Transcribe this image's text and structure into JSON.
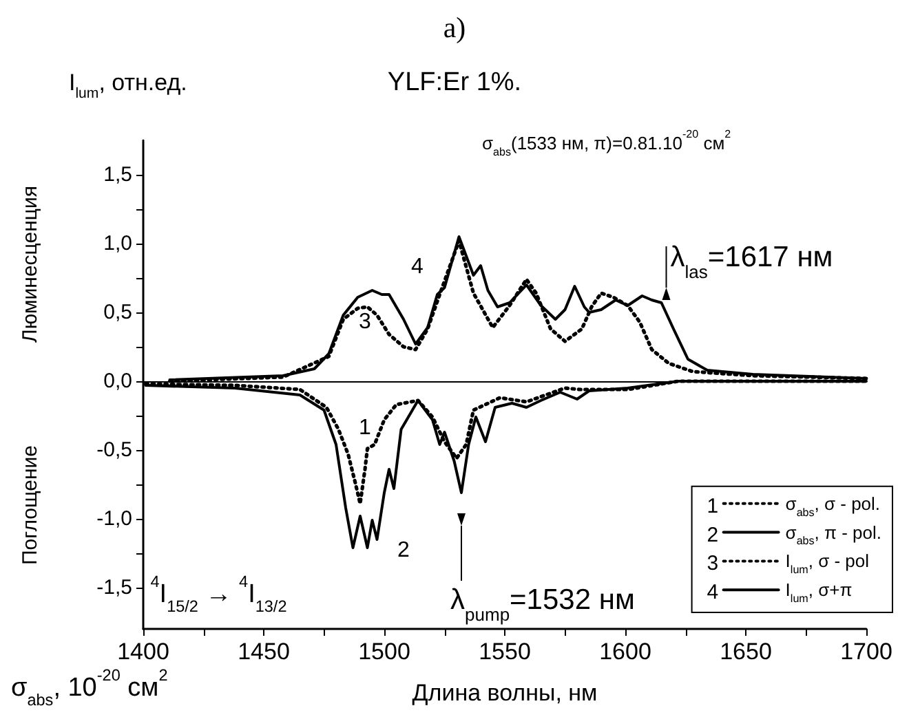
{
  "chart_data": {
    "type": "line",
    "title": "YLF:Er 1%.",
    "xlabel": "Длина волны, нм",
    "ylabel": "I$_{lum}$, отн.ед.",
    "xlim": [
      1400,
      1700
    ],
    "xticks": [
      1400,
      {
        "value": 1425,
        "label": null
      },
      1450,
      {
        "value": 1475,
        "label": null
      },
      1500,
      {
        "value": 1525,
        "label": null
      },
      1550,
      {
        "value": 1575,
        "label": null
      },
      1600,
      {
        "value": 1625,
        "label": null
      },
      1650,
      {
        "value": 1675,
        "label": null
      },
      1700
    ],
    "ylim": [
      -1.8,
      1.75
    ],
    "yticks": [
      {
        "value": -1.5,
        "label": "-1,5"
      },
      {
        "value": -1.25,
        "label": null
      },
      {
        "value": -1,
        "label": "-1,0"
      },
      {
        "value": -0.75,
        "label": null
      },
      {
        "value": -0.5,
        "label": "-0,5"
      },
      {
        "value": -0.25,
        "label": null
      },
      {
        "value": 0,
        "label": "0,0"
      },
      {
        "value": 0.25,
        "label": null
      },
      {
        "value": 0.5,
        "label": "0,5"
      },
      {
        "value": 0.75,
        "label": null
      },
      {
        "value": 1,
        "label": "1,0"
      },
      {
        "value": 1.25,
        "label": null
      },
      {
        "value": 1.5,
        "label": "1,5"
      }
    ],
    "grid": false,
    "legend": "bottom right",
    "marker": "none",
    "ref_lines": [
      {
        "axis": "y",
        "value": 0,
        "color": "#000000"
      }
    ],
    "series": [
      {
        "name": "σ$_{abs}$, σ - pol.",
        "color": "#000000",
        "line_style": "dotted",
        "x": [
          1401,
          1438,
          1465,
          1476,
          1481,
          1485,
          1488,
          1490,
          1492,
          1493,
          1496,
          1500,
          1505,
          1514,
          1520,
          1525,
          1530,
          1534,
          1537,
          1548,
          1559,
          1575,
          1581,
          1601,
          1622,
          1700
        ],
        "values": [
          -0.02,
          -0.03,
          -0.06,
          -0.19,
          -0.35,
          -0.53,
          -0.74,
          -0.89,
          -0.64,
          -0.49,
          -0.46,
          -0.28,
          -0.17,
          -0.14,
          -0.26,
          -0.44,
          -0.56,
          -0.46,
          -0.21,
          -0.12,
          -0.15,
          -0.05,
          -0.06,
          -0.06,
          0,
          0
        ]
      },
      {
        "name": "σ$_{abs}$, π - pol.",
        "color": "#000000",
        "line_style": "solid",
        "x": [
          1401,
          1438,
          1465,
          1475,
          1480,
          1484,
          1487,
          1490,
          1493,
          1495,
          1497,
          1500,
          1502,
          1504,
          1507,
          1514,
          1520,
          1523,
          1525,
          1529,
          1532,
          1535,
          1538,
          1542,
          1546,
          1553,
          1559,
          1565,
          1573,
          1580,
          1585,
          1601,
          1622,
          1700
        ],
        "values": [
          -0.03,
          -0.05,
          -0.1,
          -0.21,
          -0.46,
          -0.92,
          -1.21,
          -0.98,
          -1.21,
          -1.01,
          -1.15,
          -0.81,
          -0.64,
          -0.78,
          -0.35,
          -0.14,
          -0.28,
          -0.46,
          -0.37,
          -0.58,
          -0.81,
          -0.46,
          -0.26,
          -0.44,
          -0.19,
          -0.16,
          -0.19,
          -0.14,
          -0.08,
          -0.13,
          -0.07,
          -0.05,
          0,
          0
        ]
      },
      {
        "name": "I$_{lum}$, σ - pol",
        "color": "#000000",
        "line_style": "dotted",
        "x": [
          1411,
          1458,
          1477,
          1483,
          1489,
          1493,
          1497,
          1502,
          1508,
          1513,
          1518,
          1523,
          1531,
          1537,
          1545,
          1552,
          1559,
          1563,
          1569,
          1575,
          1582,
          1586,
          1590,
          1595,
          1601,
          1606,
          1611,
          1618,
          1628,
          1653,
          1700
        ],
        "values": [
          0,
          0.03,
          0.18,
          0.45,
          0.53,
          0.54,
          0.48,
          0.34,
          0.25,
          0.23,
          0.38,
          0.63,
          1.02,
          0.64,
          0.39,
          0.55,
          0.74,
          0.64,
          0.38,
          0.29,
          0.38,
          0.54,
          0.64,
          0.61,
          0.55,
          0.43,
          0.23,
          0.13,
          0.07,
          0.04,
          0.02
        ]
      },
      {
        "name": "I$_{lum}$, σ+π",
        "color": "#000000",
        "line_style": "solid",
        "x": [
          1411,
          1458,
          1471,
          1477,
          1483,
          1489,
          1495,
          1499,
          1502,
          1508,
          1513,
          1518,
          1522,
          1525,
          1531,
          1537,
          1540,
          1543,
          1547,
          1552,
          1559,
          1565,
          1571,
          1575,
          1579,
          1583,
          1585,
          1590,
          1596,
          1601,
          1607,
          1611,
          1615,
          1620,
          1626,
          1634,
          1653,
          1700
        ],
        "values": [
          0.01,
          0.04,
          0.09,
          0.2,
          0.48,
          0.61,
          0.66,
          0.63,
          0.63,
          0.45,
          0.27,
          0.39,
          0.63,
          0.68,
          1.05,
          0.77,
          0.84,
          0.66,
          0.54,
          0.57,
          0.7,
          0.55,
          0.45,
          0.52,
          0.69,
          0.54,
          0.5,
          0.52,
          0.59,
          0.55,
          0.62,
          0.59,
          0.57,
          0.38,
          0.16,
          0.08,
          0.05,
          0.02
        ]
      }
    ],
    "annotations": [
      "a)",
      "Люминесценция",
      "Поглощение",
      "σ$_{abs}$, 10$^{-20}$ см$^{2}$",
      "σ$_{abs}$(1533 нм, π)=0.81.10$^{-20}$ см$^{2}$",
      "λ$_{las}$=1617 нм",
      "λ$_{pump}$=1532 нм",
      "$^{4}$I$_{15/2}$ → $^{4}$I$_{13/2}$",
      "1",
      "2",
      "3",
      "4"
    ]
  }
}
